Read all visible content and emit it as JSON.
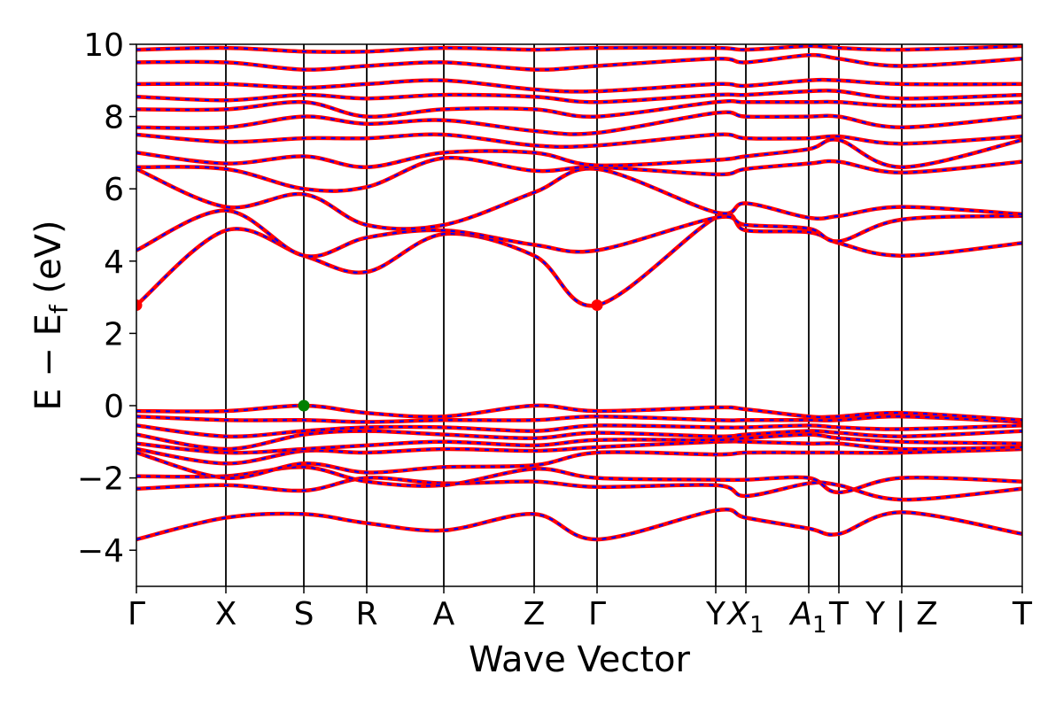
{
  "chart_data": {
    "type": "line",
    "title": "",
    "xlabel": "Wave Vector",
    "ylabel": "E − Eₑ (eV)",
    "ylabel_main": "E − E",
    "ylabel_sub": "f",
    "ylabel_unit": " (eV)",
    "ylim": [
      -5,
      10
    ],
    "yticks": [
      -4,
      -2,
      0,
      2,
      4,
      6,
      8,
      10
    ],
    "ytick_labels": [
      "−4",
      "−2",
      "0",
      "2",
      "4",
      "6",
      "8",
      "10"
    ],
    "grid": false,
    "legend": "none",
    "xlim": [
      0,
      1
    ],
    "kpoints": [
      {
        "label": "Γ",
        "x": 0.0
      },
      {
        "label": "X",
        "x": 0.101
      },
      {
        "label": "S",
        "x": 0.189
      },
      {
        "label": "R",
        "x": 0.26
      },
      {
        "label": "A",
        "x": 0.347
      },
      {
        "label": "Z",
        "x": 0.449
      },
      {
        "label": "Γ",
        "x": 0.52
      },
      {
        "label": "Y",
        "x": 0.654
      },
      {
        "label": "X",
        "sub": "1",
        "x": 0.688,
        "italic": true
      },
      {
        "label": "A",
        "sub": "1",
        "x": 0.759,
        "italic": true
      },
      {
        "label": "T",
        "x": 0.793
      },
      {
        "label": "Y | Z",
        "x": 0.864
      },
      {
        "label": "T",
        "x": 1.0
      }
    ],
    "x_nodes": [
      0.0,
      0.101,
      0.189,
      0.26,
      0.347,
      0.449,
      0.52,
      0.654,
      0.688,
      0.759,
      0.793,
      0.864,
      1.0
    ],
    "band_colors": {
      "line": "#ff0000",
      "dash": "#0000ff"
    },
    "markers": [
      {
        "name": "cbm",
        "x": 0.0,
        "y": 2.78,
        "color": "#ff0000"
      },
      {
        "name": "cbm",
        "x": 0.52,
        "y": 2.78,
        "color": "#ff0000"
      },
      {
        "name": "vbm",
        "x": 0.189,
        "y": 0.0,
        "color": "#008000"
      }
    ],
    "series": [
      {
        "values": [
          -3.7,
          -3.1,
          -3.0,
          -3.25,
          -3.45,
          -3.0,
          -3.7,
          -2.9,
          -3.1,
          -3.4,
          -3.55,
          -2.95,
          -3.55
        ]
      },
      {
        "values": [
          -2.3,
          -2.2,
          -2.35,
          -2.0,
          -2.15,
          -2.1,
          -2.25,
          -2.2,
          -2.5,
          -2.15,
          -2.2,
          -2.6,
          -2.3
        ]
      },
      {
        "values": [
          -1.95,
          -1.95,
          -1.7,
          -2.1,
          -2.2,
          -1.75,
          -2.0,
          -2.05,
          -2.05,
          -2.0,
          -2.4,
          -2.0,
          -2.1
        ]
      },
      {
        "values": [
          -1.3,
          -2.0,
          -1.6,
          -1.85,
          -1.7,
          -1.65,
          -1.3,
          -1.35,
          -1.3,
          -1.3,
          -1.3,
          -1.3,
          -1.2
        ]
      },
      {
        "values": [
          -1.2,
          -1.6,
          -1.25,
          -1.3,
          -1.2,
          -1.25,
          -1.15,
          -1.0,
          -1.0,
          -1.05,
          -1.05,
          -1.2,
          -1.15
        ]
      },
      {
        "values": [
          -1.05,
          -1.3,
          -1.2,
          -1.1,
          -1.0,
          -1.1,
          -0.95,
          -0.95,
          -0.9,
          -0.8,
          -0.9,
          -1.0,
          -1.05
        ]
      },
      {
        "values": [
          -0.8,
          -1.2,
          -0.8,
          -0.7,
          -0.8,
          -0.9,
          -0.75,
          -0.85,
          -0.8,
          -0.7,
          -0.75,
          -0.85,
          -0.7
        ]
      },
      {
        "values": [
          -0.55,
          -0.85,
          -0.7,
          -0.6,
          -0.6,
          -0.7,
          -0.55,
          -0.6,
          -0.6,
          -0.55,
          -0.6,
          -0.65,
          -0.55
        ]
      },
      {
        "values": [
          -0.3,
          -0.4,
          -0.4,
          -0.45,
          -0.4,
          -0.4,
          -0.3,
          -0.4,
          -0.4,
          -0.4,
          -0.4,
          -0.3,
          -0.45
        ]
      },
      {
        "values": [
          -0.15,
          -0.15,
          0.0,
          -0.2,
          -0.3,
          0.0,
          -0.15,
          -0.05,
          -0.1,
          -0.3,
          -0.3,
          -0.2,
          -0.4
        ]
      },
      {
        "values": [
          2.78,
          4.85,
          4.15,
          3.7,
          4.75,
          4.15,
          2.78,
          5.2,
          4.85,
          4.8,
          4.5,
          4.15,
          4.5
        ]
      },
      {
        "values": [
          4.3,
          5.4,
          4.15,
          4.65,
          4.85,
          4.45,
          4.3,
          5.2,
          5.0,
          4.9,
          4.55,
          5.15,
          5.25
        ]
      },
      {
        "values": [
          6.55,
          5.5,
          5.85,
          5.0,
          5.0,
          5.9,
          6.55,
          5.35,
          5.6,
          5.2,
          5.25,
          5.5,
          5.3
        ]
      },
      {
        "values": [
          6.6,
          6.55,
          6.0,
          6.05,
          6.85,
          6.5,
          6.6,
          6.4,
          6.55,
          6.7,
          6.75,
          6.45,
          6.75
        ]
      },
      {
        "values": [
          7.0,
          6.7,
          6.9,
          6.6,
          7.0,
          7.0,
          6.65,
          6.8,
          6.9,
          7.1,
          7.35,
          6.6,
          7.35
        ]
      },
      {
        "values": [
          7.5,
          7.3,
          7.4,
          7.4,
          7.5,
          7.2,
          7.2,
          7.5,
          7.4,
          7.4,
          7.45,
          7.25,
          7.45
        ]
      },
      {
        "values": [
          7.7,
          7.7,
          8.0,
          7.8,
          7.9,
          7.6,
          7.55,
          8.1,
          8.0,
          8.0,
          8.0,
          7.7,
          8.0
        ]
      },
      {
        "values": [
          8.2,
          8.2,
          8.4,
          8.0,
          8.2,
          8.2,
          8.0,
          8.4,
          8.4,
          8.4,
          8.4,
          8.3,
          8.4
        ]
      },
      {
        "values": [
          8.55,
          8.45,
          8.6,
          8.5,
          8.6,
          8.55,
          8.4,
          8.6,
          8.6,
          8.7,
          8.7,
          8.5,
          8.6
        ]
      },
      {
        "values": [
          8.9,
          8.9,
          8.8,
          8.9,
          9.0,
          8.75,
          8.7,
          8.9,
          8.85,
          9.0,
          9.0,
          8.9,
          8.9
        ]
      },
      {
        "values": [
          9.5,
          9.5,
          9.3,
          9.4,
          9.5,
          9.3,
          9.4,
          9.6,
          9.5,
          9.7,
          9.6,
          9.4,
          9.6
        ]
      },
      {
        "values": [
          9.85,
          9.9,
          9.8,
          9.8,
          9.9,
          9.85,
          9.9,
          9.9,
          9.85,
          9.95,
          9.9,
          9.85,
          9.95
        ]
      }
    ]
  }
}
